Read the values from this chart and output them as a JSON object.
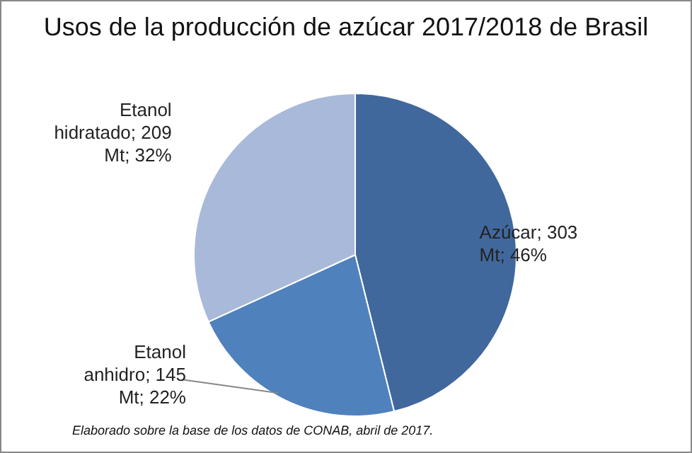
{
  "chart_data": {
    "type": "pie",
    "title": "Usos de la producción de azúcar 2017/2018 de Brasil",
    "categories": [
      "Azúcar",
      "Etanol anhidro",
      "Etanol hidratado"
    ],
    "values": [
      303,
      145,
      209
    ],
    "colors": [
      "#41689c",
      "#4f81bd",
      "#a9b9d9"
    ],
    "value_labels": [
      "; 303 Mt; 46%",
      "; 145 Mt; 22%",
      "; 209 Mt; 32%"
    ],
    "annotations": [
      "Elaborado sobre la base de los datos de CONAB, abril de 2017."
    ]
  }
}
